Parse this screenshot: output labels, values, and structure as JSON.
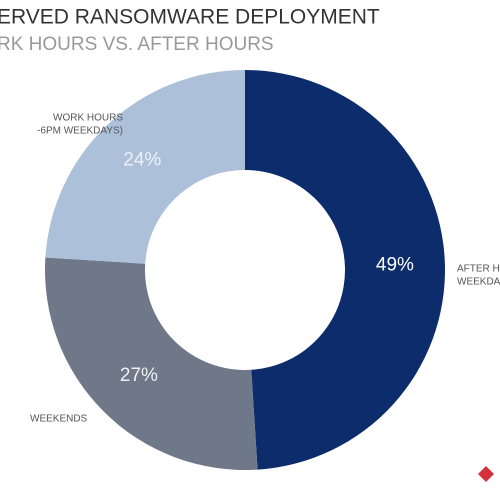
{
  "chart_data": {
    "type": "pie",
    "donut": true,
    "title": "ERVED RANSOMWARE DEPLOYMENT",
    "subtitle": "RK HOURS VS. AFTER HOURS",
    "categories": [
      [
        "AFTER H",
        "WEEKDA"
      ],
      [
        "WEEKENDS"
      ],
      [
        "WORK HOURS",
        "-6PM WEEKDAYS)"
      ]
    ],
    "values": [
      49,
      27,
      24
    ],
    "value_labels": [
      "49%",
      "27%",
      "24%"
    ],
    "colors": [
      "#0c2c6c",
      "#6f7888",
      "#adc0da"
    ]
  }
}
